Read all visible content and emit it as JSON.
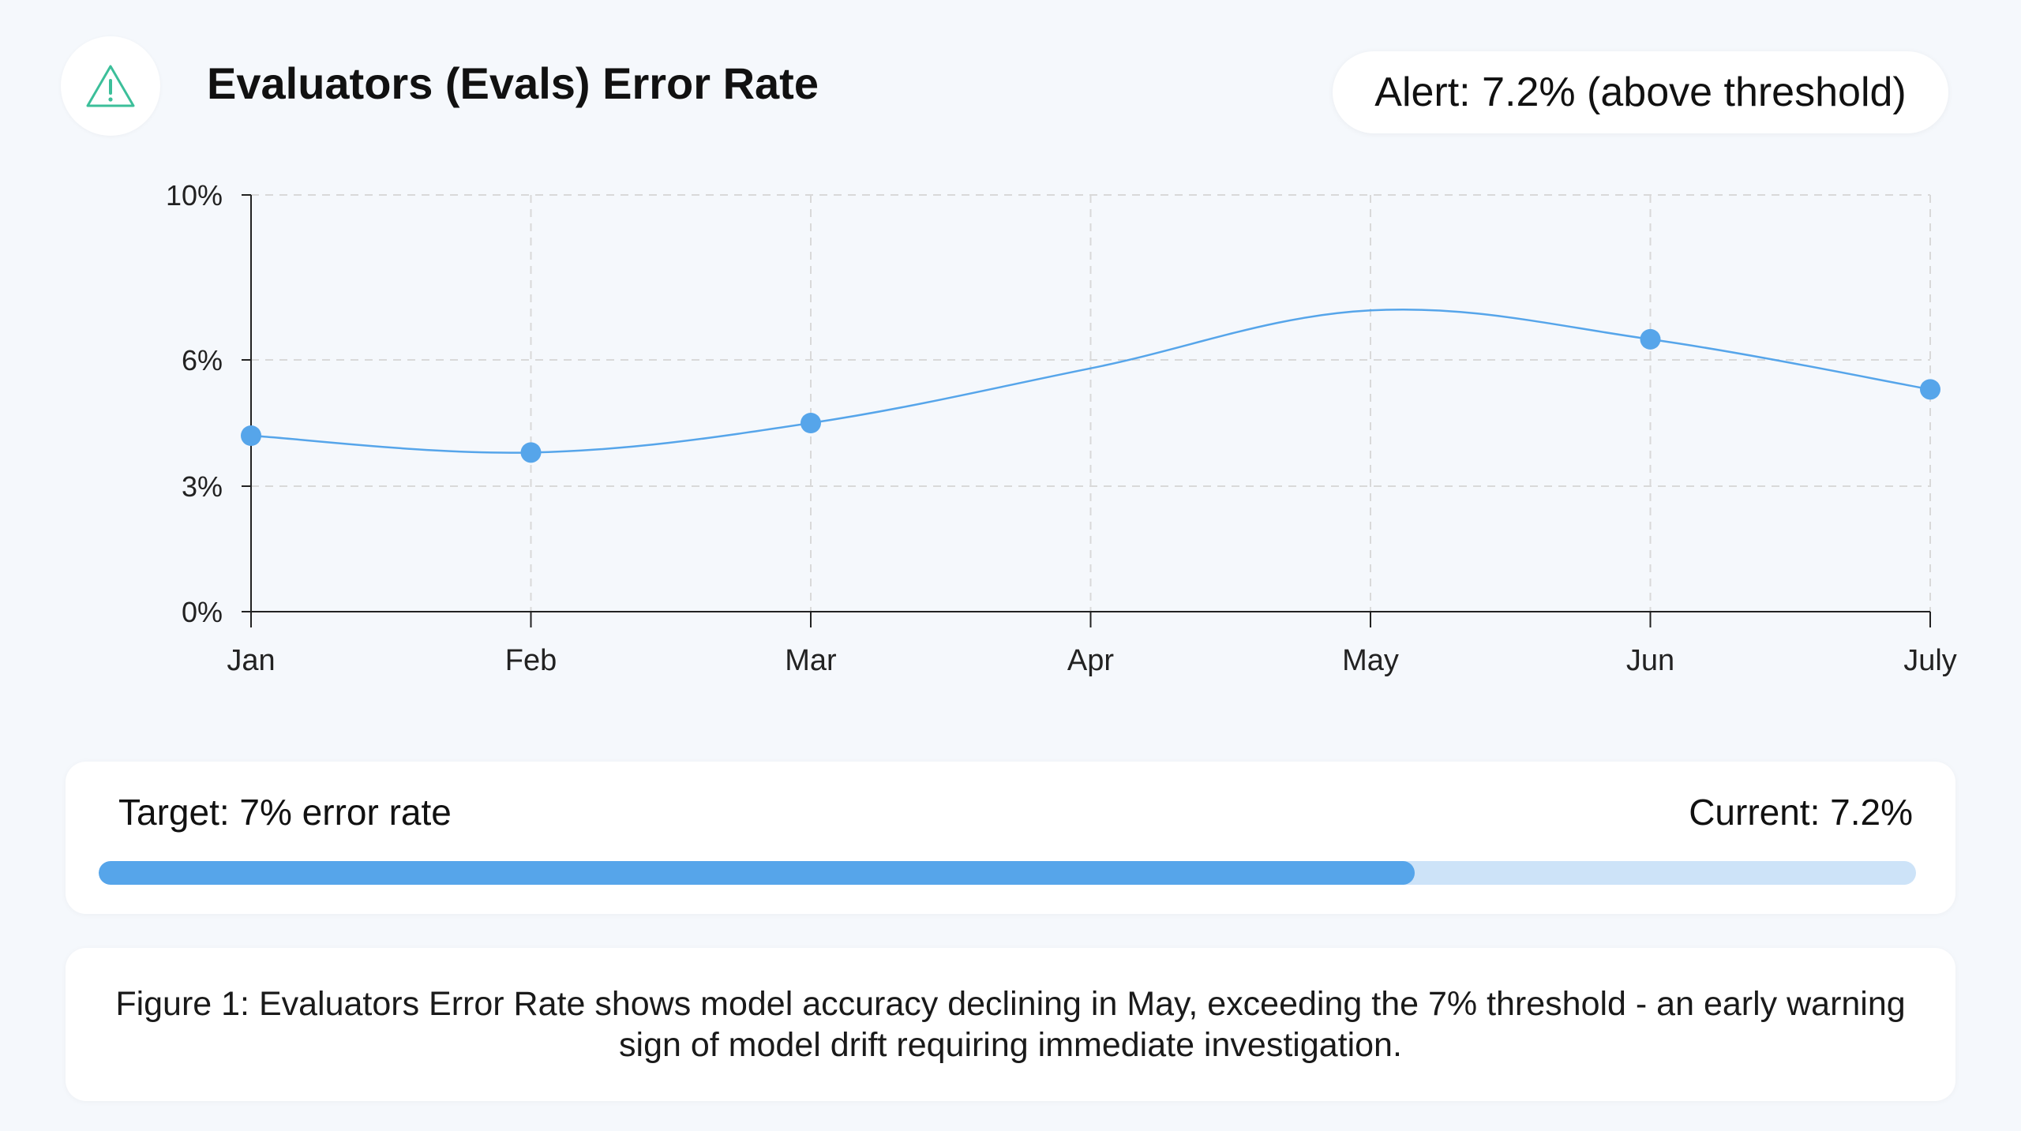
{
  "header": {
    "title": "Evaluators (Evals) Error Rate",
    "alert": "Alert: 7.2% (above threshold)",
    "icon": "warning-triangle-icon"
  },
  "colors": {
    "accent": "#56a5ea",
    "icon": "#3cbf9a",
    "track": "#cde3f8"
  },
  "chart_data": {
    "type": "line",
    "categories": [
      "Jan",
      "Feb",
      "Mar",
      "Apr",
      "May",
      "Jun",
      "July"
    ],
    "y_ticks": [
      {
        "value": 0,
        "label": "0%"
      },
      {
        "value": 3,
        "label": "3%"
      },
      {
        "value": 6,
        "label": "6%"
      },
      {
        "value": 10,
        "label": "10%"
      }
    ],
    "ylim": [
      0,
      10
    ],
    "grid": true,
    "curve": "smooth",
    "series": [
      {
        "values": [
          4.2,
          3.8,
          4.5,
          5.8,
          7.2,
          6.5,
          5.3
        ],
        "markers": [
          true,
          true,
          true,
          false,
          false,
          true,
          true
        ]
      }
    ]
  },
  "progress": {
    "target_label": "Target: 7% error rate",
    "current_label": "Current: 7.2%",
    "fill_fraction": 0.724
  },
  "caption": {
    "text": "Figure 1: Evaluators Error Rate shows model accuracy declining in May, exceeding the 7% threshold - an early warning sign of model drift requiring immediate investigation."
  }
}
